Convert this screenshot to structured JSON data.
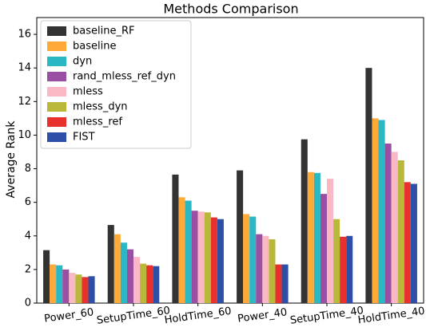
{
  "chart_data": {
    "type": "bar",
    "title": "Methods Comparison",
    "y_label": "Average Rank",
    "categories": [
      "Power_60",
      "SetupTime_60",
      "HoldTime_60",
      "Power_40",
      "SetupTime_40",
      "HoldTime_40"
    ],
    "series": [
      {
        "name": "baseline_RF",
        "color": "#333333",
        "values": [
          3.15,
          4.65,
          7.65,
          7.9,
          9.75,
          14.0
        ]
      },
      {
        "name": "baseline",
        "color": "#ffa939",
        "values": [
          2.3,
          4.1,
          6.3,
          5.3,
          7.8,
          11.0
        ]
      },
      {
        "name": "dyn",
        "color": "#2ab8c4",
        "values": [
          2.25,
          3.6,
          6.1,
          5.15,
          7.75,
          10.9
        ]
      },
      {
        "name": "rand_mless_ref_dyn",
        "color": "#9b4fa3",
        "values": [
          2.0,
          3.2,
          5.5,
          4.1,
          6.5,
          9.5
        ]
      },
      {
        "name": "mless",
        "color": "#f9b8c4",
        "values": [
          1.8,
          2.75,
          5.45,
          4.0,
          7.4,
          9.0
        ]
      },
      {
        "name": "mless_dyn",
        "color": "#b9b83a",
        "values": [
          1.7,
          2.35,
          5.4,
          3.8,
          5.0,
          8.5
        ]
      },
      {
        "name": "mless_ref",
        "color": "#e8302c",
        "values": [
          1.55,
          2.25,
          5.1,
          2.3,
          3.95,
          7.2
        ]
      },
      {
        "name": "FIST",
        "color": "#2e4fa8",
        "values": [
          1.6,
          2.2,
          5.0,
          2.3,
          4.0,
          7.1
        ]
      }
    ],
    "ylim": [
      0,
      17
    ],
    "yticks": [
      0,
      2,
      4,
      6,
      8,
      10,
      12,
      14,
      16
    ],
    "legend": "upper left"
  }
}
